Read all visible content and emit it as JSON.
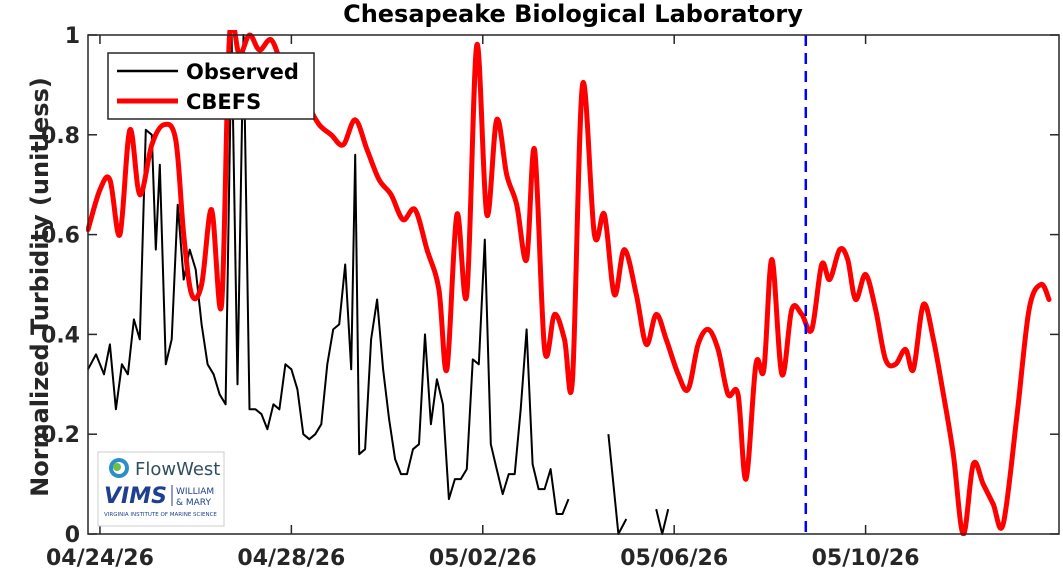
{
  "chart_data": {
    "type": "line",
    "title": "Chesapeake Biological Laboratory",
    "xlabel": "",
    "ylabel": "Normalized Turbidity (unitless)",
    "xlim": [
      "2026-04-23 18:00",
      "2026-05-14 01:00"
    ],
    "ylim": [
      0,
      1
    ],
    "xticks": [
      "2026-04-24",
      "2026-04-28",
      "2026-05-02",
      "2026-05-06",
      "2026-05-10"
    ],
    "xtick_labels": [
      "04/24/26",
      "04/28/26",
      "05/02/26",
      "05/06/26",
      "05/10/26"
    ],
    "yticks": [
      0,
      0.2,
      0.4,
      0.6,
      0.8,
      1
    ],
    "ytick_labels": [
      "0",
      "0.2",
      "0.4",
      "0.6",
      "0.8",
      "1"
    ],
    "grid": false,
    "legend_position": "top-left",
    "vertical_marker": {
      "x": "2026-05-08 18:00",
      "color": "#0000ff",
      "style": "dashed"
    },
    "series": [
      {
        "name": "Observed",
        "color": "#000000",
        "segments": [
          [
            [
              "2026-04-23 18:00",
              0.33
            ],
            [
              "2026-04-23 22:00",
              0.36
            ],
            [
              "2026-04-24 02:00",
              0.32
            ],
            [
              "2026-04-24 05:00",
              0.38
            ],
            [
              "2026-04-24 08:00",
              0.25
            ],
            [
              "2026-04-24 11:00",
              0.34
            ],
            [
              "2026-04-24 14:00",
              0.32
            ],
            [
              "2026-04-24 17:00",
              0.43
            ],
            [
              "2026-04-24 20:00",
              0.39
            ],
            [
              "2026-04-24 23:00",
              0.81
            ],
            [
              "2026-04-25 02:00",
              0.8
            ],
            [
              "2026-04-25 04:00",
              0.57
            ],
            [
              "2026-04-25 06:00",
              0.74
            ],
            [
              "2026-04-25 09:00",
              0.34
            ],
            [
              "2026-04-25 12:00",
              0.39
            ],
            [
              "2026-04-25 15:00",
              0.66
            ],
            [
              "2026-04-25 18:00",
              0.51
            ],
            [
              "2026-04-25 21:00",
              0.57
            ],
            [
              "2026-04-26 00:00",
              0.53
            ],
            [
              "2026-04-26 03:00",
              0.42
            ],
            [
              "2026-04-26 06:00",
              0.34
            ],
            [
              "2026-04-26 09:00",
              0.32
            ],
            [
              "2026-04-26 12:00",
              0.28
            ],
            [
              "2026-04-26 15:00",
              0.26
            ],
            [
              "2026-04-26 18:00",
              1.0
            ],
            [
              "2026-04-26 21:00",
              0.3
            ],
            [
              "2026-04-27 00:00",
              1.0
            ],
            [
              "2026-04-27 03:00",
              0.25
            ],
            [
              "2026-04-27 06:00",
              0.25
            ],
            [
              "2026-04-27 09:00",
              0.24
            ],
            [
              "2026-04-27 12:00",
              0.21
            ],
            [
              "2026-04-27 15:00",
              0.26
            ],
            [
              "2026-04-27 18:00",
              0.25
            ],
            [
              "2026-04-27 21:00",
              0.34
            ],
            [
              "2026-04-28 00:00",
              0.33
            ],
            [
              "2026-04-28 03:00",
              0.29
            ],
            [
              "2026-04-28 06:00",
              0.2
            ],
            [
              "2026-04-28 09:00",
              0.19
            ],
            [
              "2026-04-28 12:00",
              0.2
            ],
            [
              "2026-04-28 15:00",
              0.22
            ],
            [
              "2026-04-28 18:00",
              0.34
            ],
            [
              "2026-04-28 21:00",
              0.41
            ],
            [
              "2026-04-29 00:00",
              0.42
            ],
            [
              "2026-04-29 03:00",
              0.54
            ],
            [
              "2026-04-29 06:00",
              0.33
            ],
            [
              "2026-04-29 08:00",
              0.76
            ],
            [
              "2026-04-29 10:00",
              0.16
            ],
            [
              "2026-04-29 13:00",
              0.17
            ],
            [
              "2026-04-29 16:00",
              0.39
            ],
            [
              "2026-04-29 19:00",
              0.47
            ],
            [
              "2026-04-29 22:00",
              0.33
            ],
            [
              "2026-04-30 01:00",
              0.23
            ],
            [
              "2026-04-30 04:00",
              0.15
            ],
            [
              "2026-04-30 07:00",
              0.12
            ],
            [
              "2026-04-30 10:00",
              0.12
            ],
            [
              "2026-04-30 13:00",
              0.17
            ],
            [
              "2026-04-30 16:00",
              0.18
            ],
            [
              "2026-04-30 19:00",
              0.4
            ],
            [
              "2026-04-30 22:00",
              0.22
            ],
            [
              "2026-05-01 01:00",
              0.31
            ],
            [
              "2026-05-01 04:00",
              0.26
            ],
            [
              "2026-05-01 07:00",
              0.07
            ],
            [
              "2026-05-01 10:00",
              0.11
            ],
            [
              "2026-05-01 13:00",
              0.11
            ],
            [
              "2026-05-01 16:00",
              0.13
            ],
            [
              "2026-05-01 19:00",
              0.35
            ],
            [
              "2026-05-01 22:00",
              0.34
            ],
            [
              "2026-05-02 01:00",
              0.59
            ],
            [
              "2026-05-02 04:00",
              0.18
            ],
            [
              "2026-05-02 07:00",
              0.13
            ],
            [
              "2026-05-02 10:00",
              0.08
            ],
            [
              "2026-05-02 13:00",
              0.12
            ],
            [
              "2026-05-02 16:00",
              0.12
            ],
            [
              "2026-05-02 19:00",
              0.25
            ],
            [
              "2026-05-02 22:00",
              0.41
            ],
            [
              "2026-05-03 01:00",
              0.14
            ],
            [
              "2026-05-03 04:00",
              0.09
            ],
            [
              "2026-05-03 07:00",
              0.09
            ],
            [
              "2026-05-03 10:00",
              0.13
            ],
            [
              "2026-05-03 13:00",
              0.04
            ],
            [
              "2026-05-03 16:00",
              0.04
            ],
            [
              "2026-05-03 19:00",
              0.07
            ]
          ],
          [
            [
              "2026-05-04 15:00",
              0.2
            ],
            [
              "2026-05-04 20:00",
              0.0
            ],
            [
              "2026-05-05 00:00",
              0.03
            ]
          ],
          [
            [
              "2026-05-05 15:00",
              0.05
            ],
            [
              "2026-05-05 18:00",
              0.0
            ],
            [
              "2026-05-05 21:00",
              0.05
            ]
          ]
        ]
      },
      {
        "name": "CBEFS",
        "color": "#ff0000",
        "points": [
          [
            "2026-04-23 18:00",
            0.61
          ],
          [
            "2026-04-24 00:00",
            0.69
          ],
          [
            "2026-04-24 05:00",
            0.71
          ],
          [
            "2026-04-24 10:00",
            0.6
          ],
          [
            "2026-04-24 15:00",
            0.81
          ],
          [
            "2026-04-24 20:00",
            0.68
          ],
          [
            "2026-04-25 02:00",
            0.78
          ],
          [
            "2026-04-25 08:00",
            0.82
          ],
          [
            "2026-04-25 14:00",
            0.79
          ],
          [
            "2026-04-25 18:00",
            0.6
          ],
          [
            "2026-04-25 22:00",
            0.48
          ],
          [
            "2026-04-26 03:00",
            0.5
          ],
          [
            "2026-04-26 08:00",
            0.65
          ],
          [
            "2026-04-26 13:00",
            0.46
          ],
          [
            "2026-04-26 17:00",
            1.0
          ],
          [
            "2026-04-26 22:00",
            0.96
          ],
          [
            "2026-04-27 03:00",
            1.0
          ],
          [
            "2026-04-27 08:00",
            0.97
          ],
          [
            "2026-04-27 14:00",
            0.99
          ],
          [
            "2026-04-27 20:00",
            0.93
          ],
          [
            "2026-04-28 02:00",
            0.89
          ],
          [
            "2026-04-28 08:00",
            0.86
          ],
          [
            "2026-04-28 14:00",
            0.82
          ],
          [
            "2026-04-28 20:00",
            0.8
          ],
          [
            "2026-04-29 02:00",
            0.78
          ],
          [
            "2026-04-29 08:00",
            0.83
          ],
          [
            "2026-04-29 14:00",
            0.77
          ],
          [
            "2026-04-29 20:00",
            0.71
          ],
          [
            "2026-04-30 02:00",
            0.68
          ],
          [
            "2026-04-30 08:00",
            0.63
          ],
          [
            "2026-04-30 14:00",
            0.65
          ],
          [
            "2026-04-30 20:00",
            0.57
          ],
          [
            "2026-05-01 02:00",
            0.49
          ],
          [
            "2026-05-01 06:00",
            0.33
          ],
          [
            "2026-05-01 11:00",
            0.64
          ],
          [
            "2026-05-01 16:00",
            0.48
          ],
          [
            "2026-05-01 21:00",
            0.98
          ],
          [
            "2026-05-02 02:00",
            0.64
          ],
          [
            "2026-05-02 07:00",
            0.83
          ],
          [
            "2026-05-02 12:00",
            0.72
          ],
          [
            "2026-05-02 17:00",
            0.66
          ],
          [
            "2026-05-02 22:00",
            0.55
          ],
          [
            "2026-05-03 02:00",
            0.77
          ],
          [
            "2026-05-03 07:00",
            0.37
          ],
          [
            "2026-05-03 12:00",
            0.44
          ],
          [
            "2026-05-03 17:00",
            0.39
          ],
          [
            "2026-05-03 21:00",
            0.31
          ],
          [
            "2026-05-04 02:00",
            0.9
          ],
          [
            "2026-05-04 08:00",
            0.6
          ],
          [
            "2026-05-04 13:00",
            0.64
          ],
          [
            "2026-05-04 18:00",
            0.48
          ],
          [
            "2026-05-04 23:00",
            0.57
          ],
          [
            "2026-05-05 05:00",
            0.48
          ],
          [
            "2026-05-05 10:00",
            0.38
          ],
          [
            "2026-05-05 15:00",
            0.44
          ],
          [
            "2026-05-05 20:00",
            0.39
          ],
          [
            "2026-05-06 02:00",
            0.32
          ],
          [
            "2026-05-06 07:00",
            0.29
          ],
          [
            "2026-05-06 12:00",
            0.38
          ],
          [
            "2026-05-06 17:00",
            0.41
          ],
          [
            "2026-05-06 22:00",
            0.37
          ],
          [
            "2026-05-07 03:00",
            0.28
          ],
          [
            "2026-05-07 08:00",
            0.28
          ],
          [
            "2026-05-07 12:00",
            0.11
          ],
          [
            "2026-05-07 17:00",
            0.34
          ],
          [
            "2026-05-07 21:00",
            0.33
          ],
          [
            "2026-05-08 01:00",
            0.55
          ],
          [
            "2026-05-08 06:00",
            0.32
          ],
          [
            "2026-05-08 11:00",
            0.45
          ],
          [
            "2026-05-08 16:00",
            0.44
          ],
          [
            "2026-05-08 21:00",
            0.41
          ],
          [
            "2026-05-09 02:00",
            0.54
          ],
          [
            "2026-05-09 06:00",
            0.51
          ],
          [
            "2026-05-09 11:00",
            0.57
          ],
          [
            "2026-05-09 15:00",
            0.55
          ],
          [
            "2026-05-09 19:00",
            0.47
          ],
          [
            "2026-05-10 00:00",
            0.52
          ],
          [
            "2026-05-10 05:00",
            0.45
          ],
          [
            "2026-05-10 10:00",
            0.35
          ],
          [
            "2026-05-10 15:00",
            0.34
          ],
          [
            "2026-05-10 20:00",
            0.37
          ],
          [
            "2026-05-11 00:00",
            0.33
          ],
          [
            "2026-05-11 05:00",
            0.46
          ],
          [
            "2026-05-11 10:00",
            0.39
          ],
          [
            "2026-05-11 15:00",
            0.28
          ],
          [
            "2026-05-11 20:00",
            0.16
          ],
          [
            "2026-05-12 01:00",
            0.0
          ],
          [
            "2026-05-12 06:00",
            0.14
          ],
          [
            "2026-05-12 11:00",
            0.1
          ],
          [
            "2026-05-12 16:00",
            0.06
          ],
          [
            "2026-05-12 21:00",
            0.02
          ],
          [
            "2026-05-13 04:00",
            0.24
          ],
          [
            "2026-05-13 10:00",
            0.45
          ],
          [
            "2026-05-13 16:00",
            0.5
          ],
          [
            "2026-05-13 20:00",
            0.47
          ]
        ]
      }
    ]
  },
  "logo": {
    "flowwest_text": "FlowWest",
    "vims_text": "VIMS",
    "wm_line1": "WILLIAM",
    "wm_line2": "& MARY",
    "vims_caption": "VIRGINIA INSTITUTE OF MARINE SCIENCE"
  },
  "colors": {
    "observed": "#000000",
    "cbefs": "#ff0000",
    "marker": "#0000ff",
    "axis": "#262626"
  }
}
